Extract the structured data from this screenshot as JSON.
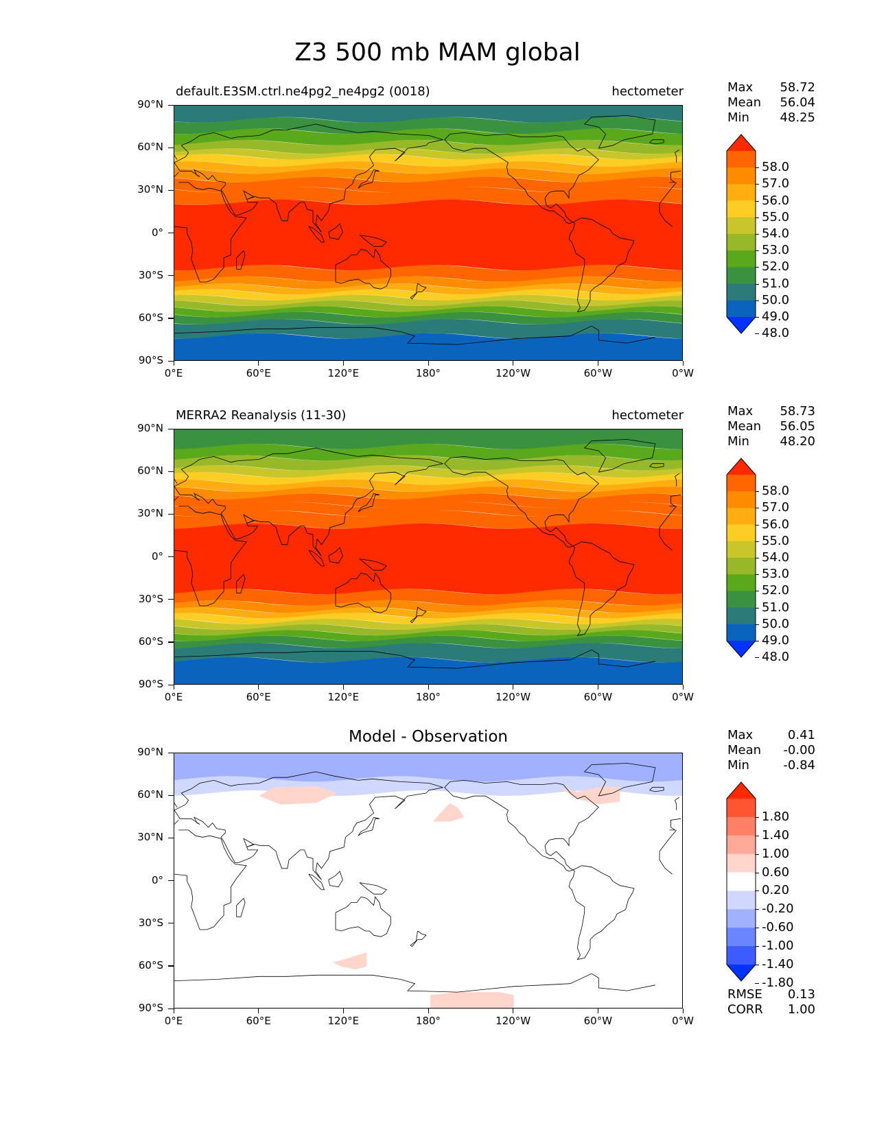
{
  "title": "Z3 500 mb MAM global",
  "x_ticks": [
    "0°E",
    "60°E",
    "120°E",
    "180°",
    "120°W",
    "60°W",
    "0°W"
  ],
  "y_ticks": [
    "90°N",
    "60°N",
    "30°N",
    "0°",
    "30°S",
    "60°S",
    "90°S"
  ],
  "panels": [
    {
      "left_title": "default.E3SM.ctrl.ne4pg2_ne4pg2 (0018)",
      "right_title": "hectometer",
      "center_title": "",
      "stats": [
        {
          "label": "Max",
          "value": "58.72"
        },
        {
          "label": "Mean",
          "value": "56.04"
        },
        {
          "label": "Min",
          "value": "48.25"
        }
      ],
      "footer_stats": [],
      "colorbar": {
        "labels": [
          "58.0",
          "57.0",
          "56.0",
          "55.0",
          "54.0",
          "53.0",
          "52.0",
          "51.0",
          "50.0",
          "49.0",
          "48.0"
        ],
        "colors": [
          "#ff2a00",
          "#ff6600",
          "#ff8c00",
          "#ffad11",
          "#fccd22",
          "#c8c62b",
          "#97b828",
          "#5aa81b",
          "#3a9140",
          "#2b7c78",
          "#0a63bd",
          "#0033ff"
        ]
      }
    },
    {
      "left_title": "MERRA2 Reanalysis (11-30)",
      "right_title": "hectometer",
      "center_title": "",
      "stats": [
        {
          "label": "Max",
          "value": "58.73"
        },
        {
          "label": "Mean",
          "value": "56.05"
        },
        {
          "label": "Min",
          "value": "48.20"
        }
      ],
      "footer_stats": [],
      "colorbar": {
        "labels": [
          "58.0",
          "57.0",
          "56.0",
          "55.0",
          "54.0",
          "53.0",
          "52.0",
          "51.0",
          "50.0",
          "49.0",
          "48.0"
        ],
        "colors": [
          "#ff2a00",
          "#ff6600",
          "#ff8c00",
          "#ffad11",
          "#fccd22",
          "#c8c62b",
          "#97b828",
          "#5aa81b",
          "#3a9140",
          "#2b7c78",
          "#0a63bd",
          "#0033ff"
        ]
      }
    },
    {
      "left_title": "",
      "right_title": "",
      "center_title": "Model - Observation",
      "stats": [
        {
          "label": "Max",
          "value": "0.41"
        },
        {
          "label": "Mean",
          "value": "-0.00"
        },
        {
          "label": "Min",
          "value": "-0.84"
        }
      ],
      "footer_stats": [
        {
          "label": "RMSE",
          "value": "0.13"
        },
        {
          "label": "CORR",
          "value": "1.00"
        }
      ],
      "colorbar": {
        "labels": [
          "1.80",
          "1.40",
          "1.00",
          "0.60",
          "0.20",
          "-0.20",
          "-0.60",
          "-1.00",
          "-1.40",
          "-1.80"
        ],
        "colors": [
          "#ff2a00",
          "#ff5533",
          "#ff8066",
          "#ffaa99",
          "#ffd5cc",
          "#ffffff",
          "#d0d8ff",
          "#a1b1ff",
          "#6a85ff",
          "#3c5cff",
          "#0033ff"
        ]
      }
    }
  ]
}
